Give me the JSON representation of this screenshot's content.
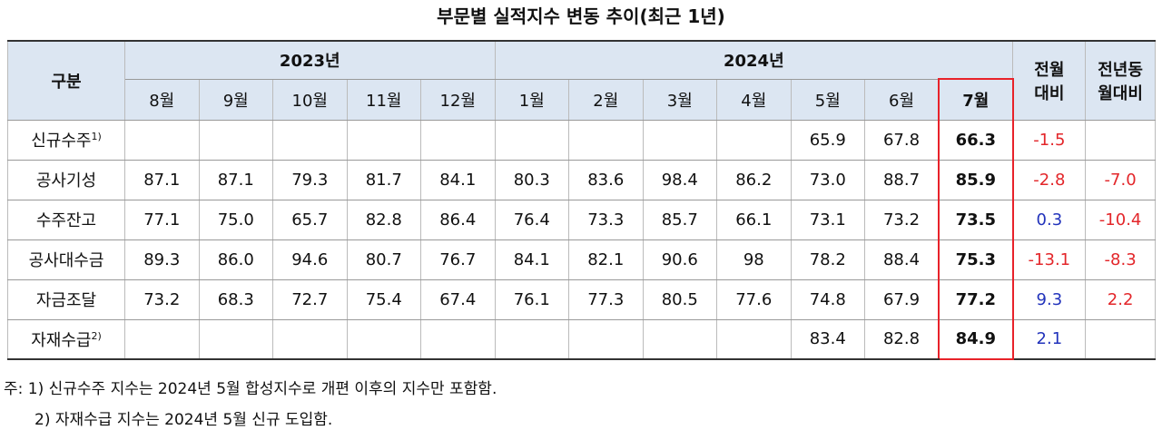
{
  "title": "부문별 실적지수 변동 추이(최근 1년)",
  "table": {
    "header": {
      "category": "구분",
      "years": [
        "2023년",
        "2024년"
      ],
      "months": [
        "8월",
        "9월",
        "10월",
        "11월",
        "12월",
        "1월",
        "2월",
        "3월",
        "4월",
        "5월",
        "6월",
        "7월"
      ],
      "mom": [
        "전월",
        "대비"
      ],
      "yoy": [
        "전년동",
        "월대비"
      ]
    },
    "rows": [
      {
        "label": "신규수주",
        "note": "1)",
        "values": [
          null,
          null,
          null,
          null,
          null,
          null,
          null,
          null,
          null,
          "65.9",
          "67.8",
          "66.3"
        ],
        "mom": {
          "text": "-1.5",
          "color": "#e3262a"
        },
        "yoy": null
      },
      {
        "label": "공사기성",
        "values": [
          "87.1",
          "87.1",
          "79.3",
          "81.7",
          "84.1",
          "80.3",
          "83.6",
          "98.4",
          "86.2",
          "73.0",
          "88.7",
          "85.9"
        ],
        "mom": {
          "text": "-2.8",
          "color": "#e3262a"
        },
        "yoy": {
          "text": "-7.0",
          "color": "#e3262a"
        }
      },
      {
        "label": "수주잔고",
        "values": [
          "77.1",
          "75.0",
          "65.7",
          "82.8",
          "86.4",
          "76.4",
          "73.3",
          "85.7",
          "66.1",
          "73.1",
          "73.2",
          "73.5"
        ],
        "mom": {
          "text": "0.3",
          "color": "#2233bb"
        },
        "yoy": {
          "text": "-10.4",
          "color": "#e3262a"
        }
      },
      {
        "label": "공사대수금",
        "values": [
          "89.3",
          "86.0",
          "94.6",
          "80.7",
          "76.7",
          "84.1",
          "82.1",
          "90.6",
          "98",
          "78.2",
          "88.4",
          "75.3"
        ],
        "mom": {
          "text": "-13.1",
          "color": "#e3262a"
        },
        "yoy": {
          "text": "-8.3",
          "color": "#e3262a"
        }
      },
      {
        "label": "자금조달",
        "values": [
          "73.2",
          "68.3",
          "72.7",
          "75.4",
          "67.4",
          "76.1",
          "77.3",
          "80.5",
          "77.6",
          "74.8",
          "67.9",
          "77.2"
        ],
        "mom": {
          "text": "9.3",
          "color": "#2233bb"
        },
        "yoy": {
          "text": "2.2",
          "color": "#e3262a"
        }
      },
      {
        "label": "자재수급",
        "note": "2)",
        "values": [
          null,
          null,
          null,
          null,
          null,
          null,
          null,
          null,
          null,
          "83.4",
          "82.8",
          "84.9"
        ],
        "mom": {
          "text": "2.1",
          "color": "#2233bb"
        },
        "yoy": null
      }
    ]
  },
  "notes": {
    "prefix": "주:",
    "items": [
      "1) 신규수주 지수는 2024년 5월 합성지수로 개편 이후의 지수만 포함함.",
      "2) 자재수급 지수는 2024년 5월 신규 도입함."
    ]
  }
}
